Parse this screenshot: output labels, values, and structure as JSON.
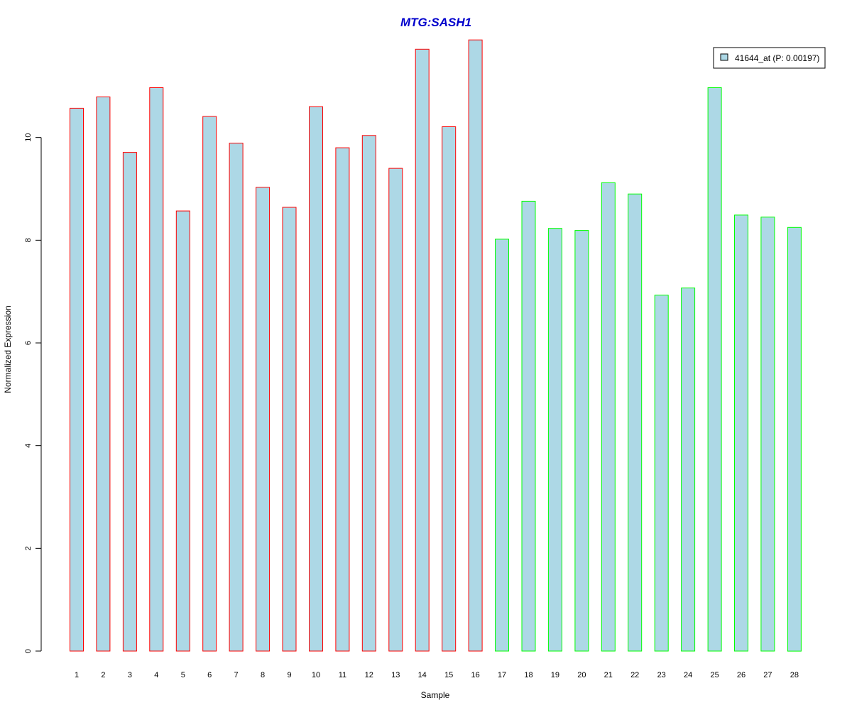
{
  "colors": {
    "bar_fill": "#add8e6",
    "group1_border": "#ff0000",
    "group2_border": "#00ff00",
    "title": "#0000cc"
  },
  "chart_data": {
    "type": "bar",
    "title": "MTG:SASH1",
    "xlabel": "Sample",
    "ylabel": "Normalized Expression",
    "ylim": [
      0,
      12
    ],
    "yticks": [
      "0",
      "2",
      "4",
      "6",
      "8",
      "10"
    ],
    "grid": false,
    "legend_position": "top-right",
    "categories": [
      "1",
      "2",
      "3",
      "4",
      "5",
      "6",
      "7",
      "8",
      "9",
      "10",
      "11",
      "12",
      "13",
      "14",
      "15",
      "16",
      "17",
      "18",
      "19",
      "20",
      "21",
      "22",
      "23",
      "24",
      "25",
      "26",
      "27",
      "28"
    ],
    "series": [
      {
        "name": "41644_at (P: 0.00197)",
        "values": [
          10.57,
          10.79,
          9.71,
          10.97,
          8.57,
          10.41,
          9.89,
          9.03,
          8.64,
          10.6,
          9.8,
          10.04,
          9.4,
          11.72,
          10.21,
          11.9,
          8.02,
          8.76,
          8.23,
          8.19,
          9.12,
          8.9,
          6.93,
          7.07,
          10.97,
          8.49,
          8.45,
          8.25
        ],
        "border_groups": [
          1,
          1,
          1,
          1,
          1,
          1,
          1,
          1,
          1,
          1,
          1,
          1,
          1,
          1,
          1,
          1,
          2,
          2,
          2,
          2,
          2,
          2,
          2,
          2,
          2,
          2,
          2,
          2
        ]
      }
    ]
  }
}
